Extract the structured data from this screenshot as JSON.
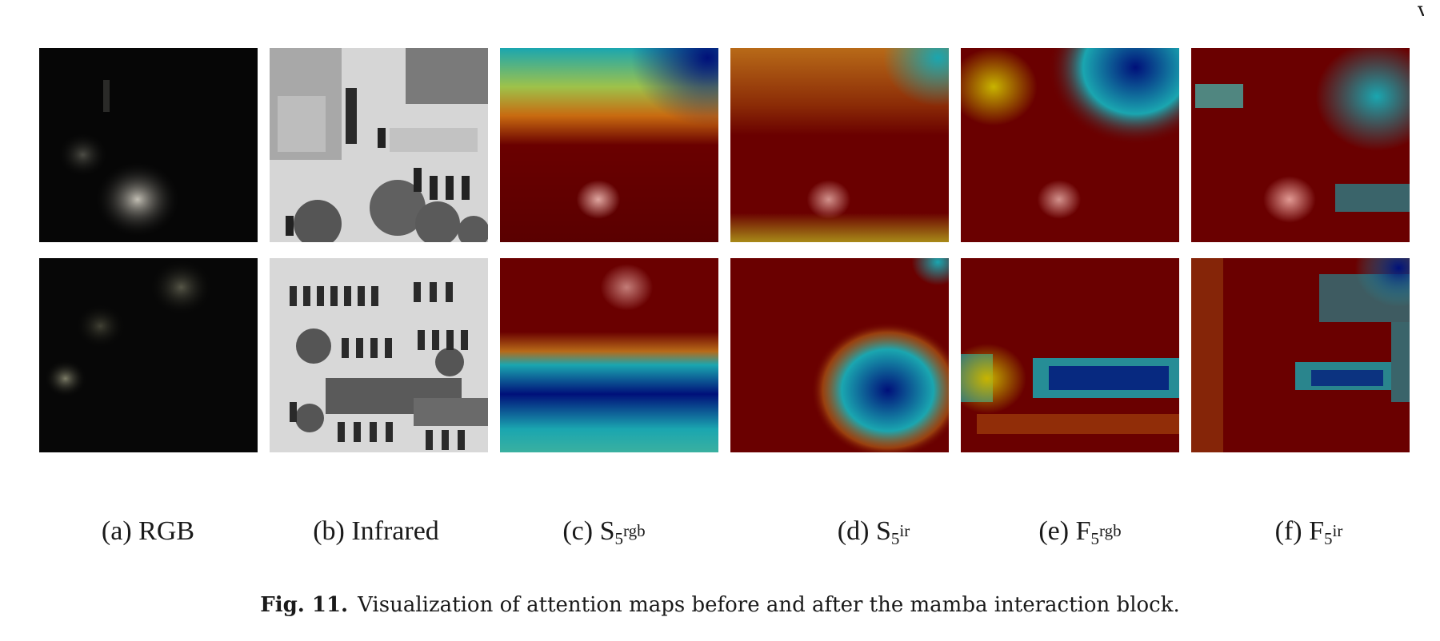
{
  "figure": {
    "number_label": "Fig. 11.",
    "caption_text": "Visualization of attention maps before and after the mamba interaction block."
  },
  "columns": [
    {
      "key": "rgb",
      "prefix": "(a) RGB",
      "base": "",
      "sub": "",
      "sup": ""
    },
    {
      "key": "infrared",
      "prefix": "(b) Infrared",
      "base": "",
      "sub": "",
      "sup": ""
    },
    {
      "key": "s5_rgb",
      "prefix": "(c) ",
      "base": "S",
      "sub": "5",
      "sup": "rgb"
    },
    {
      "key": "s5_ir",
      "prefix": "(d) ",
      "base": "S",
      "sub": "5",
      "sup": "ir"
    },
    {
      "key": "f5_rgb",
      "prefix": "(e) ",
      "base": "F",
      "sub": "5",
      "sup": "rgb"
    },
    {
      "key": "f5_ir",
      "prefix": "(f) ",
      "base": "F",
      "sub": "5",
      "sup": "ir"
    }
  ],
  "rows": [
    "row-1",
    "row-2"
  ],
  "colors": {
    "heat_red": "#6a0000",
    "heat_yellow": "#c8b400",
    "heat_cyan": "#1aa6b0",
    "heat_blue": "#00107a"
  }
}
